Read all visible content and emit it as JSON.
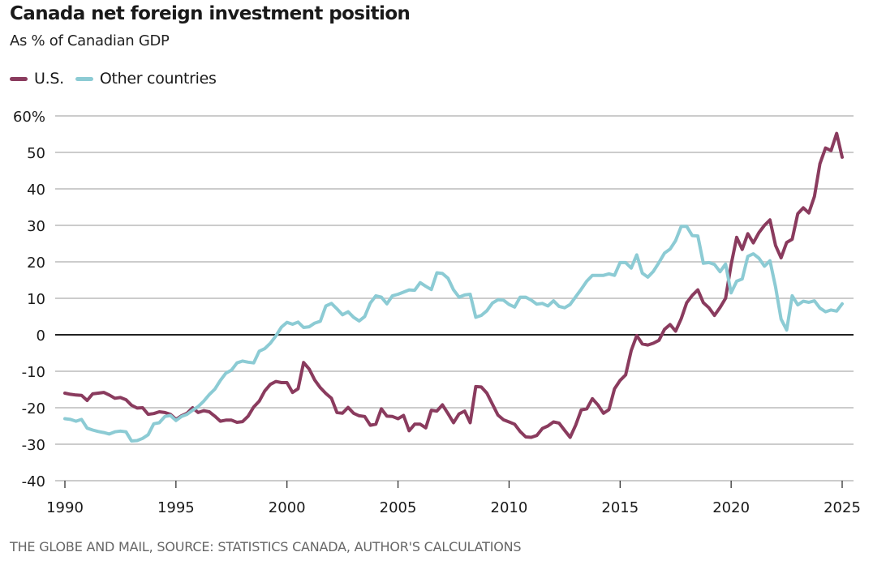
{
  "chart_data": {
    "type": "line",
    "title": "Canada net foreign investment position",
    "subtitle": "As % of Canadian GDP",
    "xlabel": "",
    "ylabel": "",
    "source": "THE GLOBE AND MAIL, SOURCE: STATISTICS CANADA, AUTHOR'S CALCULATIONS",
    "xlim": [
      1990,
      2025
    ],
    "ylim": [
      -40,
      60
    ],
    "x_ticks": [
      "1990",
      "1995",
      "2000",
      "2005",
      "2010",
      "2015",
      "2020",
      "2025"
    ],
    "y_ticks": [
      {
        "value": 60,
        "label": "60%"
      },
      {
        "value": 50,
        "label": "50"
      },
      {
        "value": 40,
        "label": "40"
      },
      {
        "value": 30,
        "label": "30"
      },
      {
        "value": 20,
        "label": "20"
      },
      {
        "value": 10,
        "label": "10"
      },
      {
        "value": 0,
        "label": "0"
      },
      {
        "value": -10,
        "label": "-10"
      },
      {
        "value": -20,
        "label": "-20"
      },
      {
        "value": -30,
        "label": "-30"
      },
      {
        "value": -40,
        "label": "-40"
      }
    ],
    "grid": true,
    "legend_position": "top-left",
    "series": [
      {
        "name": "U.S.",
        "color": "#8a3b5e",
        "x_start": 1990,
        "x_step": 0.25,
        "values": [
          -16,
          -16.3,
          -16.5,
          -16.6,
          -18,
          -16.2,
          -16,
          -15.8,
          -16.5,
          -17.4,
          -17.2,
          -17.8,
          -19.3,
          -20.1,
          -20,
          -21.8,
          -21.6,
          -21.1,
          -21.3,
          -21.8,
          -23.2,
          -22.2,
          -21.5,
          -20,
          -21.3,
          -20.8,
          -21.1,
          -22.3,
          -23.7,
          -23.4,
          -23.4,
          -24,
          -23.8,
          -22.3,
          -19.8,
          -18.2,
          -15.4,
          -13.6,
          -12.8,
          -13.1,
          -13.1,
          -15.8,
          -14.8,
          -7.6,
          -9.4,
          -12.4,
          -14.5,
          -16.1,
          -17.4,
          -21.3,
          -21.5,
          -19.9,
          -21.5,
          -22.2,
          -22.4,
          -24.8,
          -24.5,
          -20.3,
          -22.3,
          -22.4,
          -23,
          -22.1,
          -26.3,
          -24.5,
          -24.5,
          -25.5,
          -20.7,
          -20.9,
          -19.2,
          -21.6,
          -24.1,
          -21.7,
          -20.9,
          -24.1,
          -14.2,
          -14.3,
          -16,
          -19,
          -22,
          -23.3,
          -23.9,
          -24.5,
          -26.5,
          -28,
          -28.1,
          -27.6,
          -25.7,
          -25,
          -23.9,
          -24.2,
          -26.2,
          -28.1,
          -24.8,
          -20.6,
          -20.3,
          -17.5,
          -19.2,
          -21.5,
          -20.5,
          -14.8,
          -12.5,
          -11,
          -4.3,
          -0.2,
          -2.5,
          -2.8,
          -2.3,
          -1.5,
          1.5,
          2.8,
          1,
          4.4,
          8.8,
          10.8,
          12.3,
          8.8,
          7.4,
          5.3,
          7.5,
          10,
          19.2,
          26.7,
          23.4,
          27.7,
          25.2,
          28,
          30,
          31.5,
          24.5,
          21.1,
          25.3,
          26.2,
          33.2,
          34.8,
          33.4,
          37.9,
          46.9,
          51.2,
          50.5,
          55.2,
          48.7
        ]
      },
      {
        "name": "Other countries",
        "color": "#8ccbd4",
        "x_start": 1990,
        "x_step": 0.25,
        "values": [
          -23,
          -23.2,
          -23.7,
          -23.2,
          -25.6,
          -26.1,
          -26.5,
          -26.8,
          -27.2,
          -26.6,
          -26.4,
          -26.6,
          -29.1,
          -29,
          -28.4,
          -27.4,
          -24.4,
          -24.1,
          -22.4,
          -22.1,
          -23.5,
          -22.4,
          -21.8,
          -20.7,
          -19.7,
          -18.2,
          -16.4,
          -14.9,
          -12.5,
          -10.5,
          -9.7,
          -7.7,
          -7.2,
          -7.5,
          -7.7,
          -4.5,
          -3.8,
          -2.3,
          -0.3,
          2.1,
          3.4,
          2.9,
          3.5,
          2,
          2.2,
          3.2,
          3.7,
          7.9,
          8.6,
          7.1,
          5.5,
          6.3,
          4.8,
          3.8,
          5,
          8.7,
          10.7,
          10.3,
          8.5,
          10.7,
          11.1,
          11.7,
          12.3,
          12.2,
          14.3,
          13.3,
          12.4,
          17,
          16.8,
          15.5,
          12.3,
          10.3,
          10.9,
          11.1,
          4.8,
          5.3,
          6.6,
          8.7,
          9.6,
          9.5,
          8.3,
          7.6,
          10.3,
          10.3,
          9.5,
          8.4,
          8.6,
          7.9,
          9.3,
          7.8,
          7.4,
          8.3,
          10.4,
          12.5,
          14.7,
          16.3,
          16.3,
          16.3,
          16.7,
          16.3,
          19.8,
          19.8,
          18.3,
          21.9,
          16.9,
          15.8,
          17.4,
          19.8,
          22.4,
          23.5,
          25.8,
          29.7,
          29.7,
          27.2,
          27.1,
          19.6,
          19.8,
          19.3,
          17.3,
          19.4,
          11.5,
          14.7,
          15.3,
          21.5,
          22.2,
          21,
          18.8,
          20.3,
          13.1,
          4.3,
          1.3,
          10.7,
          8.2,
          9.2,
          8.9,
          9.3,
          7.3,
          6.3,
          6.8,
          6.5,
          8.5
        ]
      }
    ]
  }
}
